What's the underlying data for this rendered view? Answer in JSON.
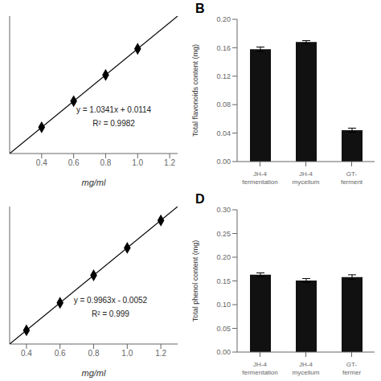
{
  "chart_data": [
    {
      "type": "scatter",
      "xlabel": "mg/ml",
      "xlim": [
        0.2,
        1.25
      ],
      "xticks": [
        0.4,
        0.6,
        0.8,
        {
          "value": 1.0,
          "label": "1.0"
        },
        1.2
      ],
      "ylim": [
        0.21822,
        1.304025
      ],
      "tick_labels": "x",
      "annotations": [
        "y = 1.0341x + 0.0114",
        "R² = 0.9982"
      ],
      "series": [
        {
          "type": "line",
          "color": "#000000",
          "x": [
            0.2,
            1.25
          ],
          "values": [
            0.21822,
            1.304025
          ]
        },
        {
          "type": "scatter",
          "color": "#000000",
          "marker": "diamond",
          "x": [
            0.4,
            0.6,
            0.8,
            1.0
          ],
          "values": [
            0.4255,
            0.6319,
            0.8385,
            1.0455
          ]
        }
      ]
    },
    {
      "type": "bar",
      "title": "B",
      "ylabel": "Total flavonoids content (mg)",
      "categories": [
        "JH-4\nfermentation",
        "JH-4\nmycelium",
        "GT-\nferment"
      ],
      "values": [
        0.158,
        0.168,
        0.044
      ],
      "errors": [
        0.003,
        0.002,
        0.003
      ],
      "color": "#111111",
      "ylim": [
        0,
        0.2
      ],
      "yticks": [
        {
          "value": 0,
          "label": "0.00"
        },
        {
          "value": 0.04,
          "label": "0.04"
        },
        {
          "value": 0.08,
          "label": "0.08"
        },
        {
          "value": 0.12,
          "label": "0.12"
        },
        {
          "value": 0.16,
          "label": "0.16"
        },
        {
          "value": 0.2,
          "label": "0.20"
        }
      ]
    },
    {
      "type": "scatter",
      "xlabel": "mg/ml",
      "xlim": [
        0.3,
        1.3
      ],
      "xticks": [
        0.4,
        0.6,
        0.8,
        {
          "value": 1.0,
          "label": "1.0"
        },
        1.2
      ],
      "ylim": [
        0.29369,
        1.28999
      ],
      "tick_labels": "x",
      "annotations": [
        "y = 0.9963x - 0.0052",
        "R² = 0.999"
      ],
      "series": [
        {
          "type": "line",
          "color": "#000000",
          "x": [
            0.3,
            1.3
          ],
          "values": [
            0.29369,
            1.28999
          ]
        },
        {
          "type": "scatter",
          "color": "#000000",
          "marker": "diamond",
          "x": [
            0.4,
            0.6,
            0.8,
            1.0,
            1.2
          ],
          "values": [
            0.3933,
            0.5924,
            0.7915,
            0.9906,
            1.1897
          ]
        }
      ]
    },
    {
      "type": "bar",
      "title": "D",
      "ylabel": "Total phenol content (mg)",
      "categories": [
        "JH-4\nfermentation",
        "JH-4\nmycelium",
        "GT-\nfermer"
      ],
      "values": [
        0.163,
        0.151,
        0.158
      ],
      "errors": [
        0.004,
        0.004,
        0.005
      ],
      "color": "#111111",
      "ylim": [
        0,
        0.3
      ],
      "yticks": [
        {
          "value": 0,
          "label": "0.00"
        },
        {
          "value": 0.05,
          "label": "0.05"
        },
        {
          "value": 0.1,
          "label": "0.10"
        },
        {
          "value": 0.15,
          "label": "0.15"
        },
        {
          "value": 0.2,
          "label": "0.20"
        },
        {
          "value": 0.25,
          "label": "0.25"
        },
        {
          "value": 0.3,
          "label": "0.30"
        }
      ]
    }
  ]
}
